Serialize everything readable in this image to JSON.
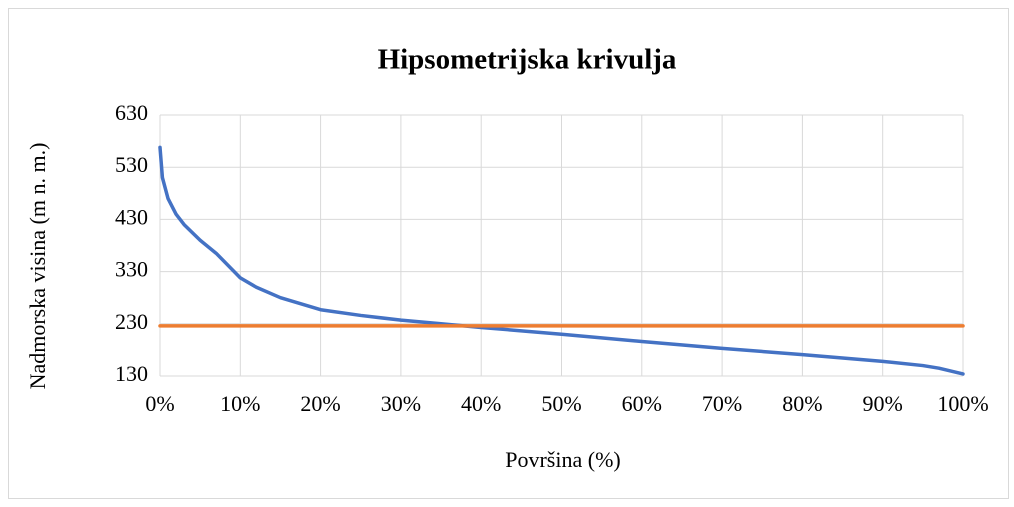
{
  "chart_data": {
    "type": "line",
    "title": "Hipsometrijska krivulja",
    "xlabel": "Površina (%)",
    "ylabel": "Nadmorska visina (m n. m.)",
    "xlim": [
      0,
      100
    ],
    "xticks": [
      {
        "value": 0,
        "label": "0%"
      },
      {
        "value": 10,
        "label": "10%"
      },
      {
        "value": 20,
        "label": "20%"
      },
      {
        "value": 30,
        "label": "30%"
      },
      {
        "value": 40,
        "label": "40%"
      },
      {
        "value": 50,
        "label": "50%"
      },
      {
        "value": 60,
        "label": "60%"
      },
      {
        "value": 70,
        "label": "70%"
      },
      {
        "value": 80,
        "label": "80%"
      },
      {
        "value": 90,
        "label": "90%"
      },
      {
        "value": 100,
        "label": "100%"
      }
    ],
    "ylim": [
      130,
      630
    ],
    "yticks": [
      130,
      230,
      330,
      430,
      530,
      630
    ],
    "grid": true,
    "series": [
      {
        "color": "#4472c4",
        "x": [
          0,
          0.3,
          1,
          2,
          3,
          5,
          7,
          10,
          12,
          15,
          20,
          25,
          30,
          35,
          40,
          50,
          60,
          70,
          80,
          90,
          95,
          97,
          100
        ],
        "values": [
          568,
          510,
          470,
          440,
          420,
          390,
          365,
          318,
          300,
          280,
          257,
          246,
          237,
          230,
          223,
          210,
          196,
          183,
          171,
          158,
          150,
          145,
          134
        ]
      },
      {
        "color": "#ed7d31",
        "x": [
          0,
          100
        ],
        "values": [
          226,
          226
        ]
      }
    ]
  }
}
